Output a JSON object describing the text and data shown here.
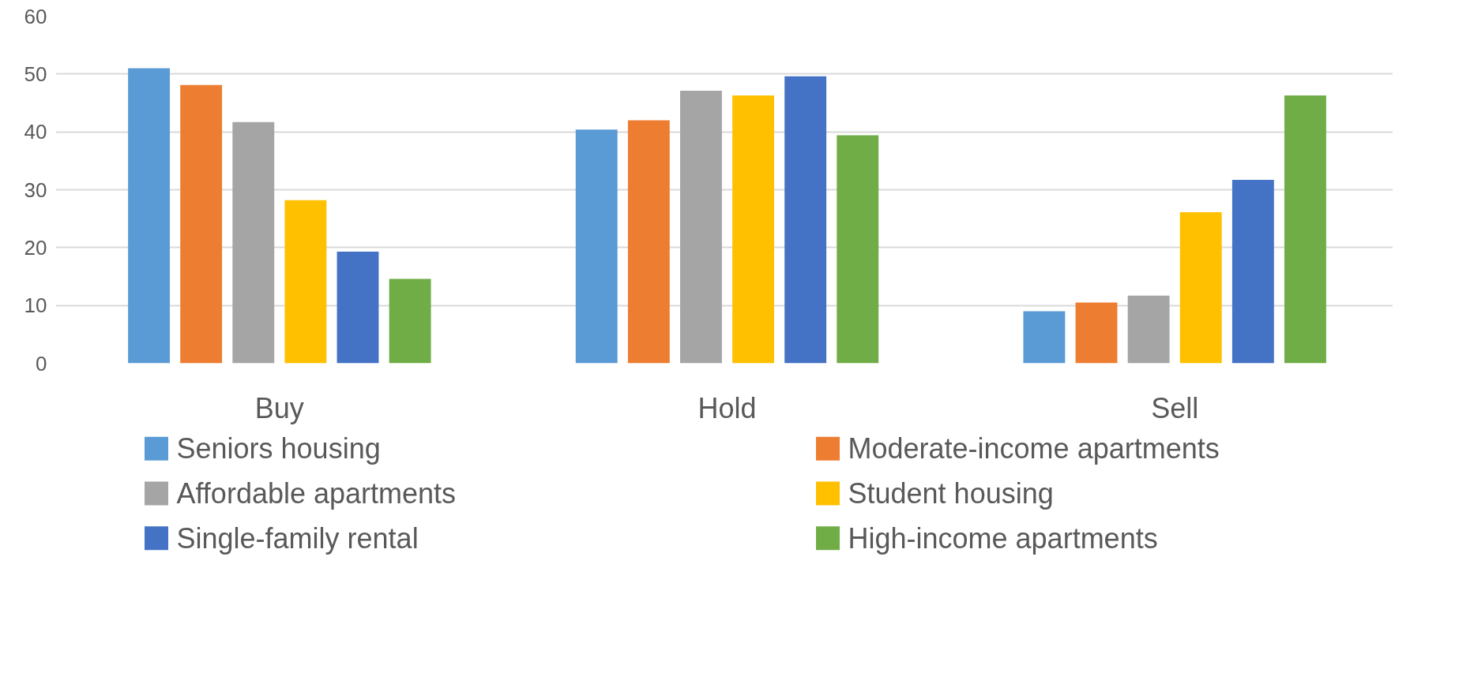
{
  "chart_data": {
    "type": "bar",
    "categories": [
      "Buy",
      "Hold",
      "Sell"
    ],
    "series": [
      {
        "name": "Seniors housing",
        "color": "#5b9bd5",
        "values": [
          51.0,
          40.4,
          9.0
        ]
      },
      {
        "name": "Moderate-income apartments",
        "color": "#ed7d31",
        "values": [
          48.1,
          42.0,
          10.5
        ]
      },
      {
        "name": "Affordable apartments",
        "color": "#a5a5a5",
        "values": [
          41.7,
          47.1,
          11.7
        ]
      },
      {
        "name": "Student housing",
        "color": "#ffc000",
        "values": [
          28.2,
          46.3,
          26.1
        ]
      },
      {
        "name": "Single-family rental",
        "color": "#4472c4",
        "values": [
          19.3,
          49.6,
          31.7
        ]
      },
      {
        "name": "High-income apartments",
        "color": "#70ad47",
        "values": [
          14.6,
          39.4,
          46.3
        ]
      }
    ],
    "ylim": [
      0,
      60
    ],
    "yticks": [
      0,
      10,
      20,
      30,
      40,
      50,
      60
    ],
    "grid": "y",
    "legend": "bottom"
  }
}
